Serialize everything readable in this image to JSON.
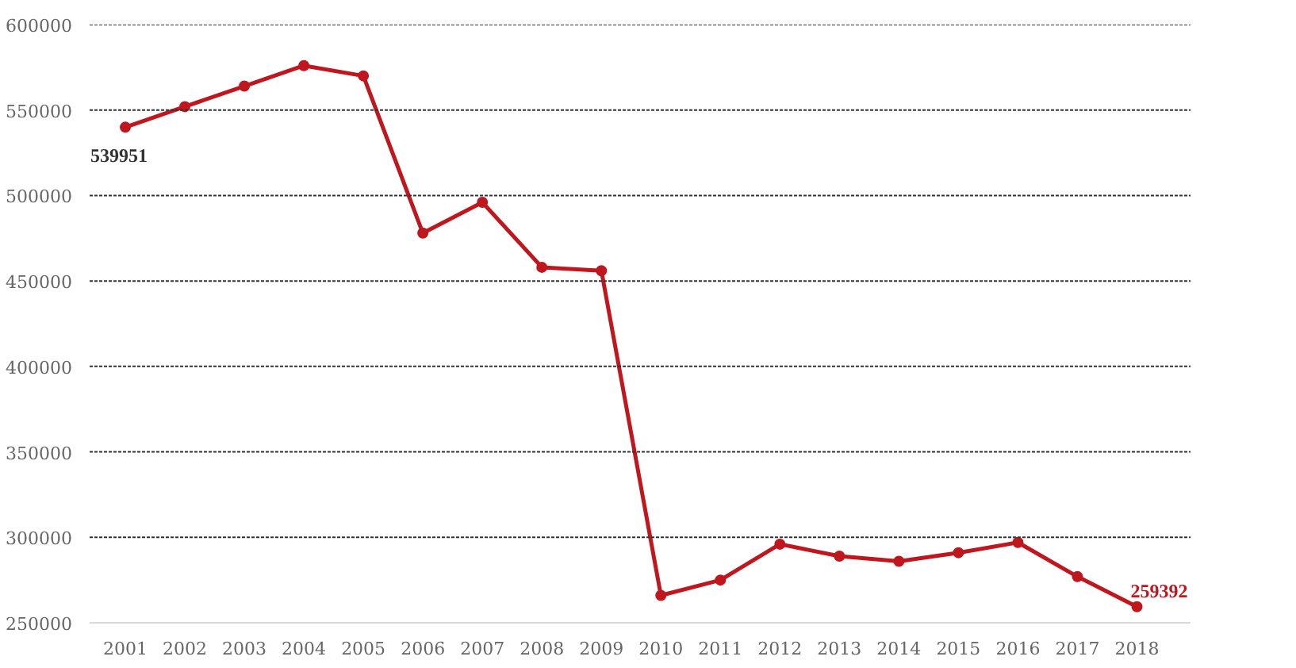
{
  "chart_data": {
    "type": "line",
    "categories": [
      "2001",
      "2002",
      "2003",
      "2004",
      "2005",
      "2006",
      "2007",
      "2008",
      "2009",
      "2010",
      "2011",
      "2012",
      "2013",
      "2014",
      "2015",
      "2016",
      "2017",
      "2018"
    ],
    "series": [
      {
        "color": "#c0161e",
        "values": [
          539951,
          552000,
          564000,
          576000,
          570000,
          478000,
          496000,
          458000,
          456000,
          266000,
          275000,
          296000,
          289000,
          286000,
          291000,
          297000,
          277000,
          259392
        ],
        "value_labels": [
          "539951",
          null,
          null,
          null,
          null,
          null,
          null,
          null,
          null,
          null,
          null,
          null,
          null,
          null,
          null,
          null,
          null,
          "259392"
        ]
      }
    ],
    "ylim": [
      250000,
      600000
    ],
    "yticks": [
      250000,
      300000,
      350000,
      400000,
      450000,
      500000,
      550000,
      600000
    ],
    "grid": "y",
    "marker": "circle",
    "line_style": "solid"
  }
}
